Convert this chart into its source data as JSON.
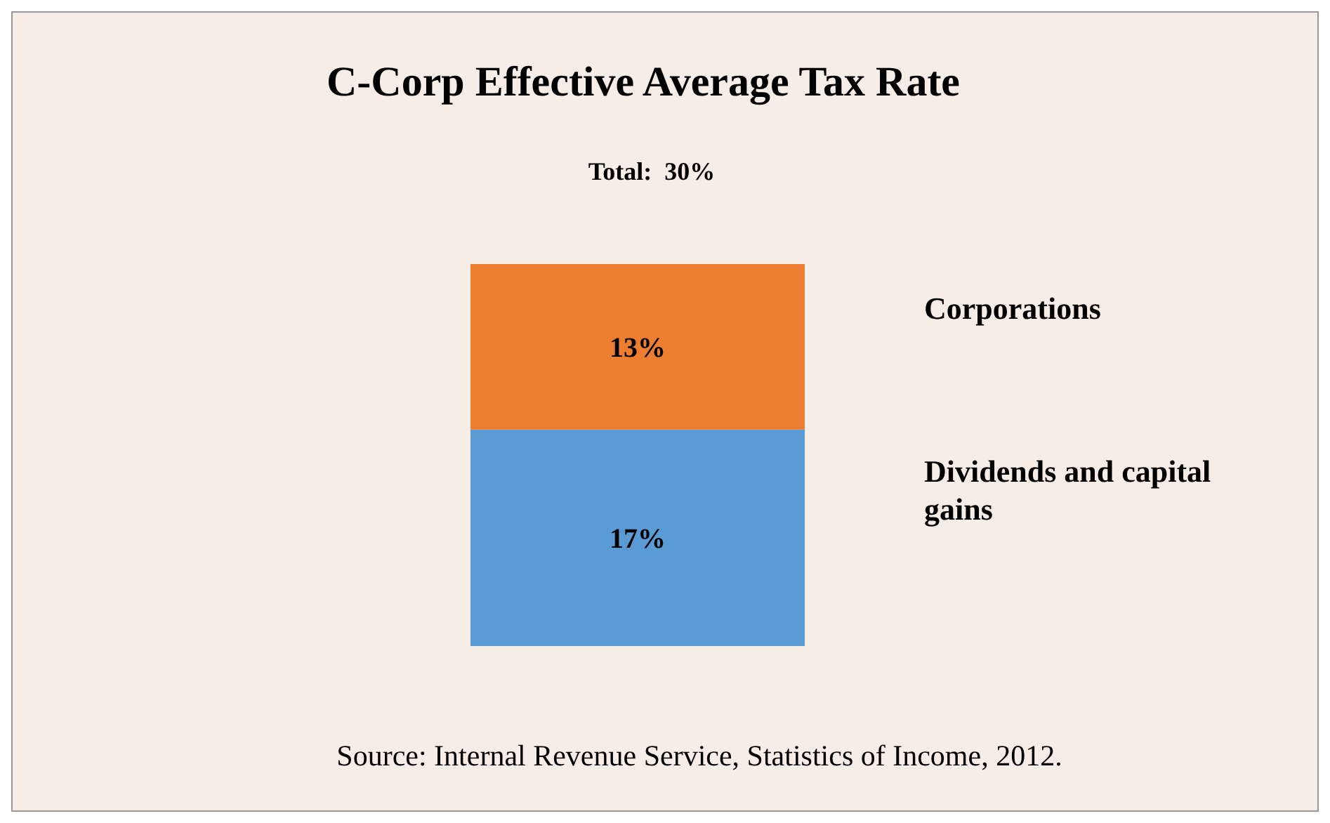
{
  "chart_data": {
    "type": "bar",
    "title": "C-Corp Effective Average Tax Rate",
    "categories": [
      null
    ],
    "stacked": true,
    "series": [
      {
        "name": "Dividends and capital gains",
        "color": "#5b9bd5",
        "values": [
          17
        ],
        "value_labels": [
          "17%"
        ]
      },
      {
        "name": "Corporations",
        "color": "#ed7d31",
        "values": [
          13
        ],
        "value_labels": [
          "13%"
        ]
      }
    ],
    "totals": [
      "Total:  30%"
    ],
    "annotations": [
      "Source: Internal Revenue Service, Statistics of Income, 2012."
    ]
  }
}
